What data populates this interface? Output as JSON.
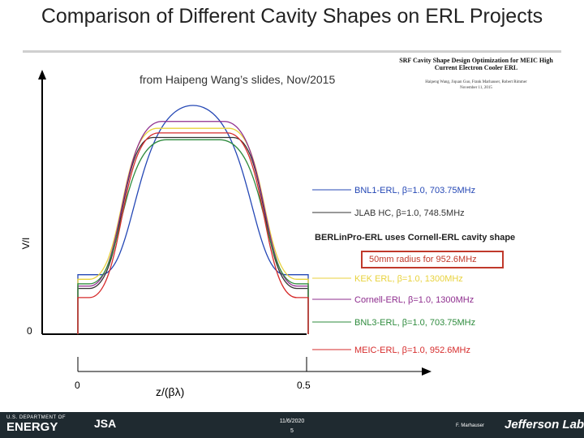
{
  "slide": {
    "title": "Comparison of Different Cavity Shapes on ERL Projects",
    "source": "from Haipeng Wang’s slides, Nov/2015",
    "inset": {
      "title": "SRF Cavity Shape Design Optimization for MEIC High Current Electron Cooler ERL",
      "authors": "Haipeng Wang, Jiquan Guo, Frank Marhauser, Robert Rimmer",
      "date": "November 11, 2015"
    },
    "note": "BERLinPro-ERL uses Cornell-ERL cavity shape",
    "highlight": "50mm radius for 952.6MHz"
  },
  "chart_data": {
    "type": "line",
    "ylabel": "V/I",
    "xlabel": "z/(βλ)",
    "y_tick_labels": [
      "0"
    ],
    "x_tick_labels": [
      "0",
      "0.5"
    ],
    "series": [
      {
        "name": "BNL1-ERL, β=1.0, 703.75MHz",
        "color": "#2447b5",
        "flat": 0.12,
        "peak": 1.0,
        "x_rise": 0.42,
        "round": true
      },
      {
        "name": "JLAB HC, β=1.0, 748.5MHz",
        "color": "#333333",
        "flat": 0.06,
        "peak": 0.86,
        "x_rise": 0.5,
        "round": false
      },
      {
        "name": "KEK ERL, β=1.0, 1300MHz",
        "color": "#e8d23c",
        "flat": 0.1,
        "peak": 0.9,
        "x_rise": 0.47,
        "round": false
      },
      {
        "name": "Cornell-ERL, β=1.0, 1300MHz",
        "color": "#8e2d8e",
        "flat": 0.07,
        "peak": 0.93,
        "x_rise": 0.44,
        "round": false
      },
      {
        "name": "BNL3-ERL, β=1.0, 703.75MHz",
        "color": "#2e8b3d",
        "flat": 0.08,
        "peak": 0.85,
        "x_rise": 0.41,
        "round": false
      },
      {
        "name": "MEIC-ERL, β=1.0, 952.6MHz",
        "color": "#d62b2b",
        "flat": 0.02,
        "peak": 0.88,
        "x_rise": 0.46,
        "round": false
      }
    ]
  },
  "footer": {
    "doe_label": "ENERGY",
    "doe_top": "U.S. DEPARTMENT OF",
    "jsa_label": "JSA",
    "date": "11/6/2020",
    "page": "5",
    "author": "F. Marhauser",
    "lab": "Jefferson Lab"
  }
}
